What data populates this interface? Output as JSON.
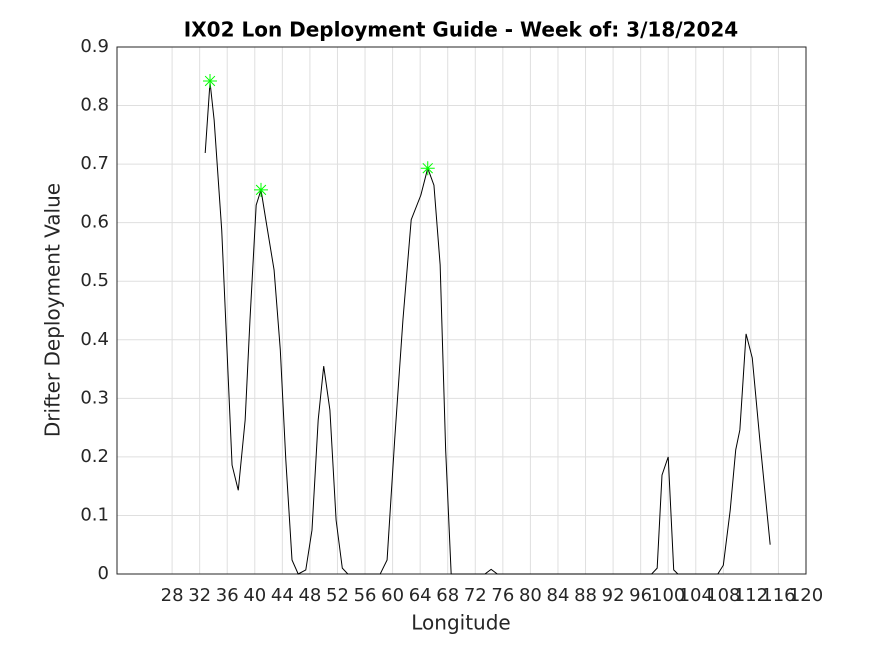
{
  "chart_data": {
    "type": "line",
    "title": "IX02 Lon Deployment Guide - Week of: 3/18/2024",
    "xlabel": "Longitude",
    "ylabel": "Drifter Deployment Value",
    "x": [
      32.8,
      33.5,
      34.1,
      35.2,
      36.7,
      37.6,
      38.6,
      39.3,
      40.2,
      40.9,
      41.6,
      42.8,
      43.7,
      44.5,
      45.4,
      46.3,
      47.4,
      48.3,
      49.2,
      50.0,
      50.9,
      51.8,
      52.7,
      53.5,
      58.2,
      59.2,
      60.3,
      61.5,
      62.7,
      64.1,
      65.1,
      66.0,
      66.9,
      67.7,
      68.5,
      73.4,
      74.3,
      75.2,
      97.6,
      98.4,
      99.1,
      100.0,
      100.8,
      101.4,
      107.2,
      108.0,
      109.0,
      109.8,
      110.4,
      111.3,
      112.2,
      113.3,
      114.8
    ],
    "series": [
      {
        "color": "#000000",
        "values": [
          0.719,
          0.84,
          0.775,
          0.587,
          0.186,
          0.143,
          0.263,
          0.434,
          0.63,
          0.656,
          0.605,
          0.519,
          0.383,
          0.195,
          0.024,
          0,
          0.007,
          0.075,
          0.263,
          0.355,
          0.28,
          0.092,
          0.01,
          0,
          0,
          0.024,
          0.229,
          0.434,
          0.605,
          0.647,
          0.693,
          0.664,
          0.528,
          0.212,
          0,
          0,
          0.008,
          0,
          0,
          0.01,
          0.169,
          0.2,
          0.007,
          0,
          0,
          0.015,
          0.109,
          0.212,
          0.246,
          0.41,
          0.369,
          0.229,
          0.05
        ]
      }
    ],
    "peaks": {
      "color": "#00ff00",
      "x": [
        33.5,
        40.9,
        65.1
      ],
      "values": [
        0.842,
        0.656,
        0.693
      ]
    },
    "xlim": [
      20,
      120
    ],
    "xticks": [
      28,
      32,
      36,
      40,
      44,
      48,
      52,
      56,
      60,
      64,
      68,
      72,
      76,
      80,
      84,
      88,
      92,
      96,
      100,
      104,
      108,
      112,
      116,
      120
    ],
    "ylim": [
      0,
      0.9
    ],
    "yticks": [
      0,
      0.1,
      0.2,
      0.3,
      0.4,
      0.5,
      0.6,
      0.7,
      0.8,
      0.9
    ],
    "grid": true
  }
}
